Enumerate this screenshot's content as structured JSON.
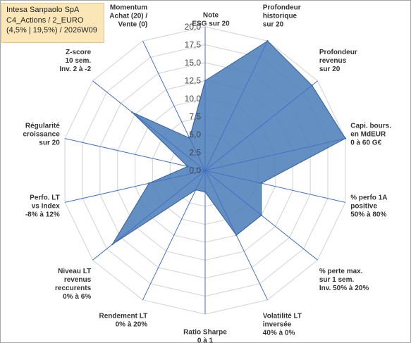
{
  "title_box": {
    "line1": "Intesa Sanpaolo SpA",
    "line2": "C4_Actions / 2_EURO",
    "line3": "(4,5% | 19,5%) / 2026W09"
  },
  "colors": {
    "fill": "#4f7fba",
    "stroke": "#2f5e9e",
    "grid": "#d9d9d9",
    "spoke": "#4472c4",
    "title_bg": "#fbe6b8"
  },
  "chart_data": {
    "type": "radar",
    "title": "",
    "rmin": 0,
    "rmax": 20,
    "tick_step": 2.5,
    "tick_labels": [
      "0,0",
      "2,5",
      "5,0",
      "7,5",
      "10,0",
      "12,5",
      "15,0",
      "17,5",
      "20,0"
    ],
    "grid": true,
    "categories": [
      [
        "Note",
        "ESG sur 20"
      ],
      [
        "Profondeur",
        "historique",
        "sur 20"
      ],
      [
        "Profondeur",
        "revenus",
        "sur 20"
      ],
      [
        "Capi. bours.",
        "en MdEUR",
        "0 à 60 G€"
      ],
      [
        "% perfo 1A",
        "positive",
        "50% à 80%"
      ],
      [
        "% perte max.",
        "sur 1 sem.",
        "Inv. 50% à 20%"
      ],
      [
        "Volatilité LT",
        "inversée",
        "40% à 0%"
      ],
      [
        "Ratio Sharpe",
        "0 à 1"
      ],
      [
        "Rendement LT",
        "0% à 20%"
      ],
      [
        "Niveau LT",
        "revenus",
        "reccurents",
        "0% à 6%"
      ],
      [
        "Perfo. LT",
        "vs Index",
        "-8% à 12%"
      ],
      [
        "Régularité",
        "croissance",
        "sur 20"
      ],
      [
        "Z-score",
        "10 sem.",
        "Inv. 2 à -2"
      ],
      [
        "Momentum",
        "Achat (20) /",
        "Vente (0)"
      ]
    ],
    "values": [
      12.5,
      20.0,
      19.0,
      20.0,
      8.0,
      10.0,
      10.0,
      3.0,
      3.0,
      16.5,
      8.0,
      2.5,
      13.0,
      5.0
    ]
  }
}
